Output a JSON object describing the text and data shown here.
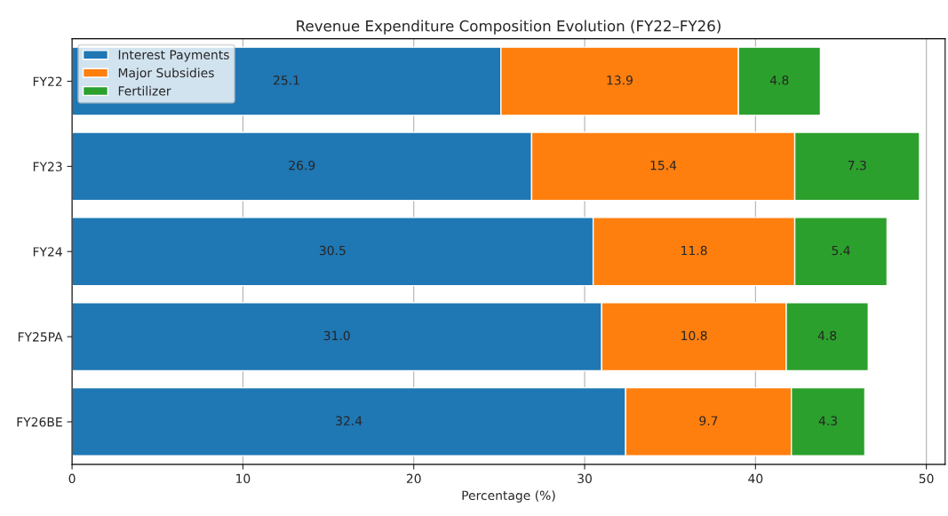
{
  "chart_data": {
    "type": "bar",
    "orientation": "horizontal",
    "stacked": true,
    "title": "Revenue Expenditure Composition Evolution (FY22–FY26)",
    "xlabel": "Percentage (%)",
    "categories": [
      "FY22",
      "FY23",
      "FY24",
      "FY25PA",
      "FY26BE"
    ],
    "series": [
      {
        "name": "Interest Payments",
        "color": "#1f77b4",
        "values": [
          25.1,
          26.9,
          30.5,
          31.0,
          32.4
        ],
        "value_labels": [
          "25.1",
          "26.9",
          "30.5",
          "31.0",
          "32.4"
        ]
      },
      {
        "name": "Major Subsidies",
        "color": "#ff7f0e",
        "values": [
          13.9,
          15.4,
          11.8,
          10.8,
          9.7
        ],
        "value_labels": [
          "13.9",
          "15.4",
          "11.8",
          "10.8",
          "9.7"
        ]
      },
      {
        "name": "Fertilizer",
        "color": "#2ca02c",
        "values": [
          4.8,
          7.3,
          5.4,
          4.8,
          4.3
        ],
        "value_labels": [
          "4.8",
          "7.3",
          "5.4",
          "4.8",
          "4.3"
        ]
      }
    ],
    "xlim": [
      0,
      51.1
    ],
    "xticks": [
      0,
      10,
      20,
      30,
      40,
      50
    ],
    "grid": "x",
    "legend": "top left"
  }
}
